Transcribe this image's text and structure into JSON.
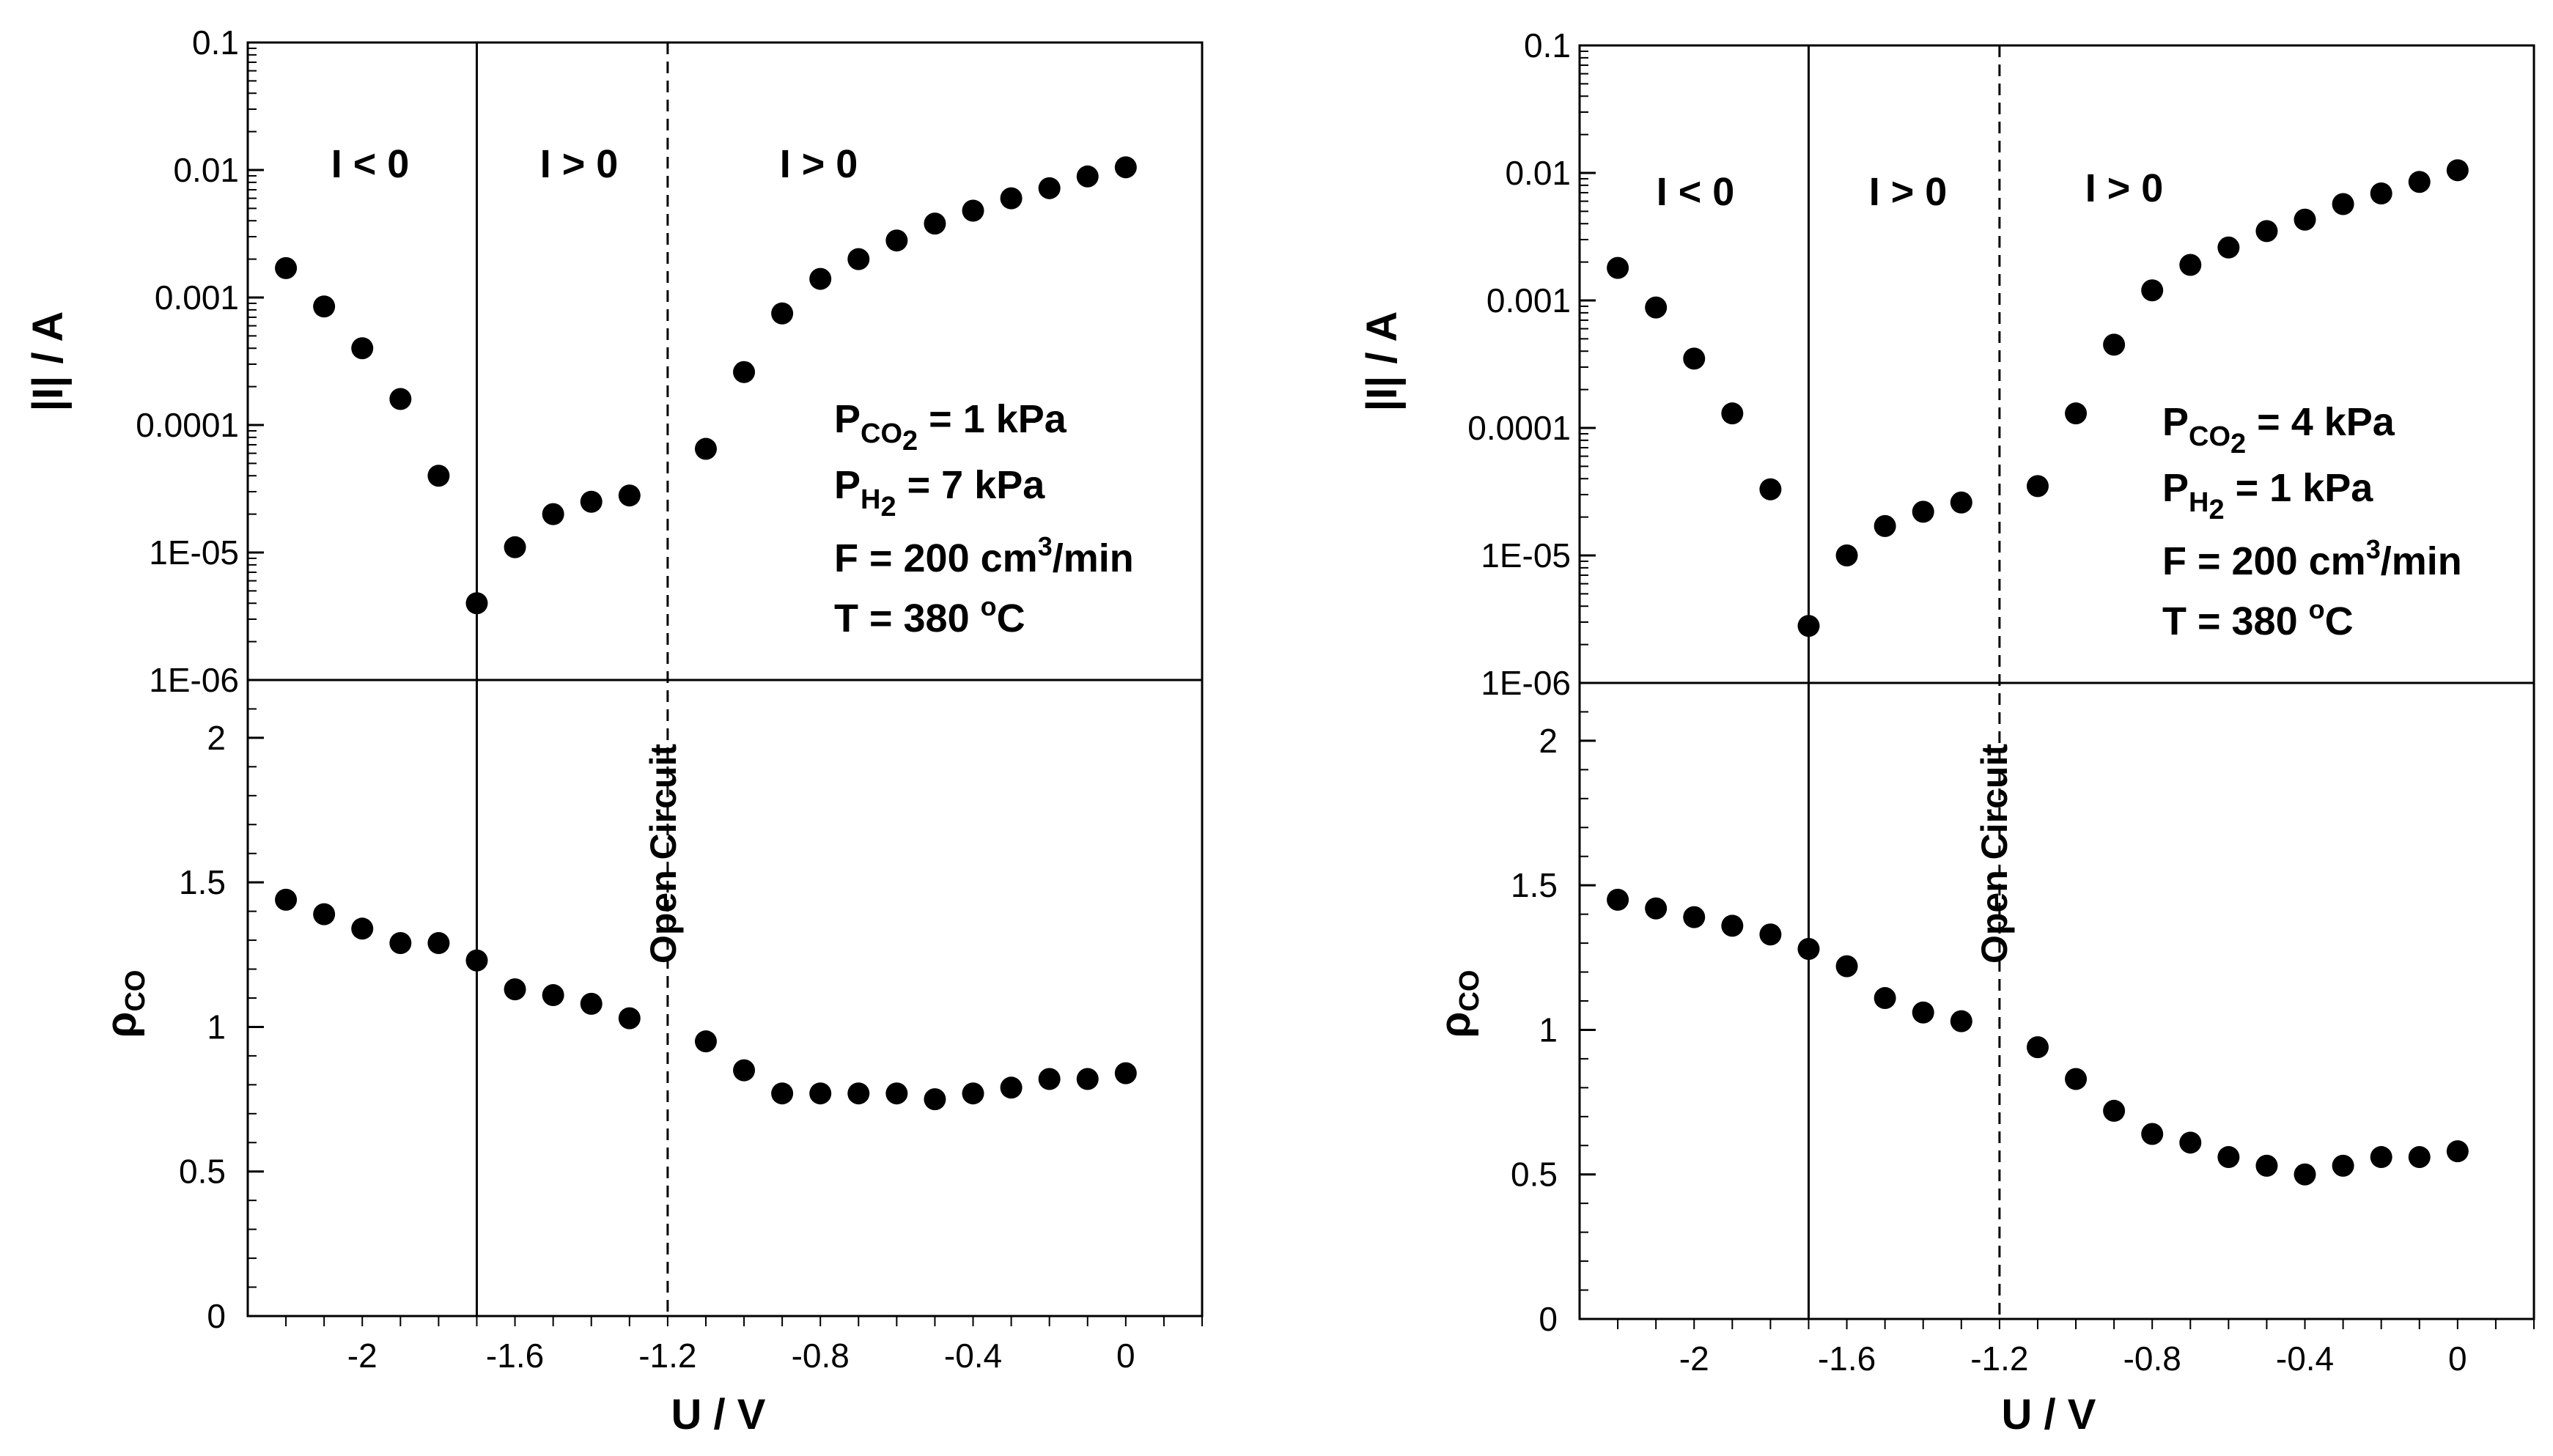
{
  "chart_data": [
    {
      "type": "scatter",
      "name": "left",
      "xlabel": "U / V",
      "x_ticks": [
        -2,
        -1.6,
        -1.2,
        -0.8,
        -0.4,
        0
      ],
      "x_tick_labels": [
        "-2",
        "-1.6",
        "-1.2",
        "-0.8",
        "-0.4",
        "0"
      ],
      "xlim": [
        -2.3,
        0.2
      ],
      "top": {
        "ylabel": "|I| / A",
        "yscale": "log",
        "ylim": [
          1e-06,
          0.1
        ],
        "y_ticks": [
          1e-06,
          1e-05,
          0.0001,
          0.001,
          0.01,
          0.1
        ],
        "y_tick_labels": [
          "1E-06",
          "1E-05",
          "0.0001",
          "0.001",
          "0.01",
          "0.1"
        ],
        "x": [
          -2.2,
          -2.1,
          -2.0,
          -1.9,
          -1.8,
          -1.7,
          -1.6,
          -1.5,
          -1.4,
          -1.3,
          -1.1,
          -1.0,
          -0.9,
          -0.8,
          -0.7,
          -0.6,
          -0.5,
          -0.4,
          -0.3,
          -0.2,
          -0.1,
          0.0
        ],
        "y": [
          0.0017,
          0.00085,
          0.0004,
          0.00016,
          4e-05,
          4e-06,
          1.1e-05,
          2e-05,
          2.5e-05,
          2.8e-05,
          6.5e-05,
          0.00026,
          0.00075,
          0.0014,
          0.002,
          0.0028,
          0.0038,
          0.0048,
          0.006,
          0.0072,
          0.0089,
          0.0105
        ]
      },
      "bottom": {
        "ylabel": "ρCO",
        "ylim": [
          0,
          2.2
        ],
        "y_ticks": [
          0,
          0.5,
          1,
          1.5,
          2
        ],
        "y_tick_labels": [
          "0",
          "0.5",
          "1",
          "1.5",
          "2"
        ],
        "x": [
          -2.2,
          -2.1,
          -2.0,
          -1.9,
          -1.8,
          -1.7,
          -1.6,
          -1.5,
          -1.4,
          -1.3,
          -1.1,
          -1.0,
          -0.9,
          -0.8,
          -0.7,
          -0.6,
          -0.5,
          -0.4,
          -0.3,
          -0.2,
          -0.1,
          0.0
        ],
        "y": [
          1.44,
          1.39,
          1.34,
          1.29,
          1.29,
          1.23,
          1.13,
          1.11,
          1.08,
          1.03,
          0.95,
          0.85,
          0.77,
          0.77,
          0.77,
          0.77,
          0.75,
          0.77,
          0.79,
          0.82,
          0.82,
          0.84
        ]
      },
      "vline_solid": -1.7,
      "vline_dashed": -1.2,
      "open_circuit_label": "Open Circuit",
      "regions": [
        "I < 0",
        "I > 0",
        "I > 0"
      ],
      "conditions": {
        "p1_main": "P",
        "p1_sub": "CO",
        "p1_subsub": "2",
        "p1_value": " = 1 kPa",
        "p2_main": "P",
        "p2_sub": "H",
        "p2_subsub": "2",
        "p2_value": " = 7 kPa",
        "f_text": "F = 200 cm",
        "f_sup": "3",
        "f_unit": "/min",
        "t_text": "T = 380 ",
        "t_sup": "o",
        "t_unit": "C"
      }
    },
    {
      "type": "scatter",
      "name": "right",
      "xlabel": "U / V",
      "x_ticks": [
        -2,
        -1.6,
        -1.2,
        -0.8,
        -0.4,
        0
      ],
      "x_tick_labels": [
        "-2",
        "-1.6",
        "-1.2",
        "-0.8",
        "-0.4",
        "0"
      ],
      "xlim": [
        -2.3,
        0.2
      ],
      "top": {
        "ylabel": "|I| / A",
        "yscale": "log",
        "ylim": [
          1e-06,
          0.1
        ],
        "y_ticks": [
          1e-06,
          1e-05,
          0.0001,
          0.001,
          0.01,
          0.1
        ],
        "y_tick_labels": [
          "1E-06",
          "1E-05",
          "0.0001",
          "0.001",
          "0.01",
          "0.1"
        ],
        "x": [
          -2.2,
          -2.1,
          -2.0,
          -1.9,
          -1.8,
          -1.7,
          -1.6,
          -1.5,
          -1.4,
          -1.3,
          -1.1,
          -1.0,
          -0.9,
          -0.8,
          -0.7,
          -0.6,
          -0.5,
          -0.4,
          -0.3,
          -0.2,
          -0.1,
          0.0
        ],
        "y": [
          0.0018,
          0.00088,
          0.00035,
          0.00013,
          3.3e-05,
          2.8e-06,
          1e-05,
          1.7e-05,
          2.2e-05,
          2.6e-05,
          3.5e-05,
          0.00013,
          0.00045,
          0.0012,
          0.0019,
          0.0026,
          0.0035,
          0.0043,
          0.0057,
          0.0069,
          0.0085,
          0.0105
        ]
      },
      "bottom": {
        "ylabel": "ρCO",
        "ylim": [
          0,
          2.2
        ],
        "y_ticks": [
          0,
          0.5,
          1,
          1.5,
          2
        ],
        "y_tick_labels": [
          "0",
          "0.5",
          "1",
          "1.5",
          "2"
        ],
        "x": [
          -2.2,
          -2.1,
          -2.0,
          -1.9,
          -1.8,
          -1.7,
          -1.6,
          -1.5,
          -1.4,
          -1.3,
          -1.1,
          -1.0,
          -0.9,
          -0.8,
          -0.7,
          -0.6,
          -0.5,
          -0.4,
          -0.3,
          -0.2,
          -0.1,
          0.0
        ],
        "y": [
          1.45,
          1.42,
          1.39,
          1.36,
          1.33,
          1.28,
          1.22,
          1.11,
          1.06,
          1.03,
          0.94,
          0.83,
          0.72,
          0.64,
          0.61,
          0.56,
          0.53,
          0.5,
          0.53,
          0.56,
          0.56,
          0.58
        ]
      },
      "vline_solid": -1.7,
      "vline_dashed": -1.2,
      "open_circuit_label": "Open Circuit",
      "regions": [
        "I < 0",
        "I > 0",
        "I > 0"
      ],
      "conditions": {
        "p1_main": "P",
        "p1_sub": "CO",
        "p1_subsub": "2",
        "p1_value": " = 4 kPa",
        "p2_main": "P",
        "p2_sub": "H",
        "p2_subsub": "2",
        "p2_value": " = 1 kPa",
        "f_text": "F = 200 cm",
        "f_sup": "3",
        "f_unit": "/min",
        "t_text": "T = 380 ",
        "t_sup": "o",
        "t_unit": "C"
      }
    }
  ]
}
